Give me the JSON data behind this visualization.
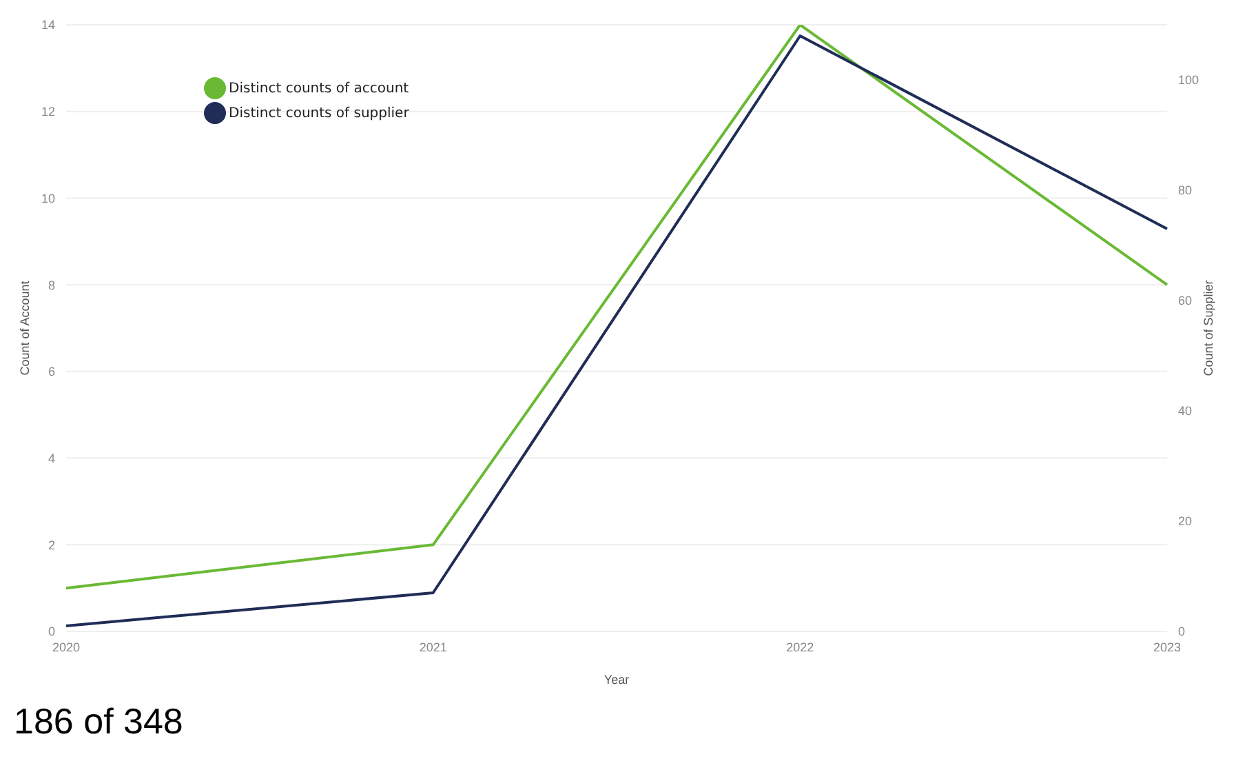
{
  "chart_data": {
    "type": "line",
    "xlabel": "Year",
    "ylabel": "Count of Account",
    "y2label": "Count of Supplier",
    "categories": [
      "2020",
      "2021",
      "2022",
      "2023"
    ],
    "series": [
      {
        "name": "Distinct counts of account",
        "color": "#6ab934",
        "values": [
          1,
          2,
          14,
          8
        ]
      },
      {
        "name": "Distinct counts of supplier",
        "color": "#1f2d57",
        "values": [
          1,
          7,
          108,
          73
        ],
        "axis": "y2"
      }
    ],
    "ylim": [
      0,
      14
    ],
    "yticks": [
      0,
      2,
      4,
      6,
      8,
      10,
      12,
      14
    ],
    "y2lim": [
      0,
      110
    ],
    "y2ticks": [
      0,
      20,
      40,
      60,
      80,
      100
    ],
    "grid": "y",
    "legend": "top left",
    "marker": "none",
    "line_style": "solid",
    "annotations": [
      "186 of 348"
    ]
  }
}
